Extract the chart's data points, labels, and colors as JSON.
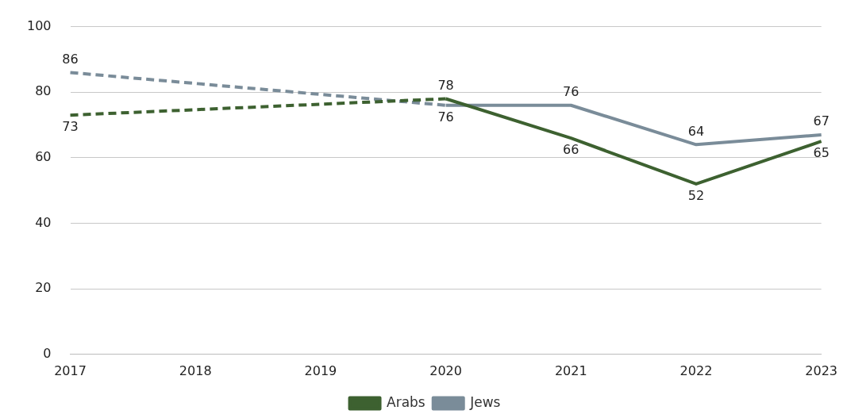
{
  "chart_data": {
    "type": "line",
    "categories": [
      "2017",
      "2018",
      "2019",
      "2020",
      "2021",
      "2022",
      "2023"
    ],
    "series": [
      {
        "color": "#3d6130",
        "line_style": "dashed",
        "values": [
          73,
          null,
          null,
          78,
          null,
          null,
          null
        ],
        "value_labels": [
          "73",
          null,
          null,
          null,
          null,
          null,
          null
        ]
      },
      {
        "color": "#7a8c99",
        "line_style": "dashed",
        "values": [
          86,
          null,
          null,
          76,
          null,
          null,
          null
        ],
        "value_labels": [
          "86",
          null,
          null,
          null,
          null,
          null,
          null
        ]
      },
      {
        "name": "Arabs",
        "color": "#3d6130",
        "line_style": "solid",
        "values": [
          null,
          null,
          null,
          78,
          66,
          52,
          65
        ],
        "value_labels": [
          null,
          null,
          null,
          "78",
          "66",
          "52",
          "65"
        ]
      },
      {
        "name": "Jews",
        "color": "#7a8c99",
        "line_style": "solid",
        "values": [
          null,
          null,
          null,
          76,
          76,
          64,
          67
        ],
        "value_labels": [
          null,
          null,
          null,
          "76",
          "76",
          "64",
          "67"
        ]
      }
    ],
    "ylim": [
      0,
      100
    ],
    "yticks": [
      0,
      20,
      40,
      60,
      80,
      100
    ],
    "grid": "y",
    "legend": "bottom",
    "marker": "none"
  }
}
